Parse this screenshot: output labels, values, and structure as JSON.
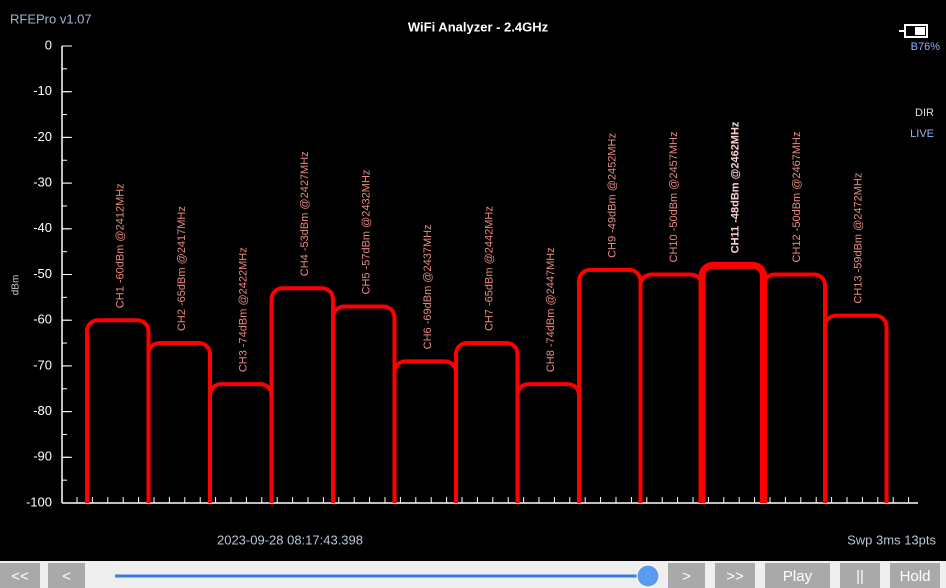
{
  "app": {
    "name": "RFEPro v1.07",
    "battery": "B76%",
    "mode": "DIR",
    "status": "LIVE"
  },
  "chart_data": {
    "type": "bar",
    "title": "WiFi Analyzer - 2.4GHz",
    "y_label": "dBm",
    "categories": [
      "CH1",
      "CH2",
      "CH3",
      "CH4",
      "CH5",
      "CH6",
      "CH7",
      "CH8",
      "CH9",
      "CH10",
      "CH11",
      "CH12",
      "CH13"
    ],
    "values": [
      -60,
      -65,
      -74,
      -53,
      -57,
      -69,
      -65,
      -74,
      -49,
      -50,
      -48,
      -50,
      -59
    ],
    "value_labels": [
      "CH1 -60dBm @2412MHz",
      "CH2 -65dBm @2417MHz",
      "CH3 -74dBm @2422MHz",
      "CH4 -53dBm @2427MHz",
      "CH5 -57dBm @2432MHz",
      "CH6 -69dBm @2437MHz",
      "CH7 -65dBm @2442MHz",
      "CH8 -74dBm @2447MHz",
      "CH9 -49dBm @2452MHz",
      "CH10 -50dBm @2457MHz",
      "CH11 -48dBm @2462MHz",
      "CH12 -50dBm @2467MHz",
      "CH13 -59dBm @2472MHz"
    ],
    "color": "#ff0000",
    "ylim": [
      -100,
      0
    ],
    "yticks": [
      0,
      -10,
      -20,
      -30,
      -40,
      -50,
      -60,
      -70,
      -80,
      -90,
      -100
    ],
    "grid": false
  },
  "footer": {
    "timestamp": "2023-09-28 08:17:43.398",
    "sweep": "Swp 3ms 13pts"
  },
  "controls": [
    "<<",
    "<",
    ">",
    ">>",
    "Play",
    "||",
    "Hold"
  ]
}
